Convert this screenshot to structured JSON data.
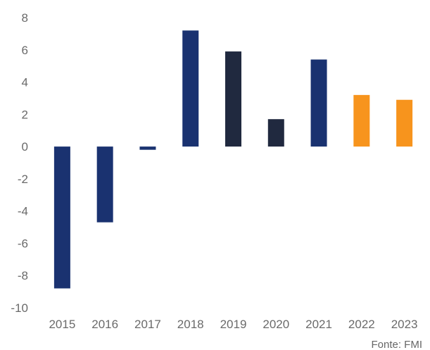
{
  "chart_data": {
    "type": "bar",
    "categories": [
      "2015",
      "2016",
      "2017",
      "2018",
      "2019",
      "2020",
      "2021",
      "2022",
      "2023"
    ],
    "values": [
      -8.8,
      -4.7,
      -0.2,
      7.2,
      5.9,
      1.7,
      5.4,
      3.2,
      2.9
    ],
    "bar_colors": [
      "#1a3270",
      "#1a3270",
      "#1a3270",
      "#1a3270",
      "#20293f",
      "#20293f",
      "#1a3270",
      "#f7941d",
      "#f7941d"
    ],
    "ylim": [
      -10,
      8
    ],
    "yticks": [
      8,
      6,
      4,
      2,
      0,
      -2,
      -4,
      -6,
      -8,
      -10
    ],
    "grid": false,
    "legend": "none"
  },
  "source": "Fonte: FMI"
}
